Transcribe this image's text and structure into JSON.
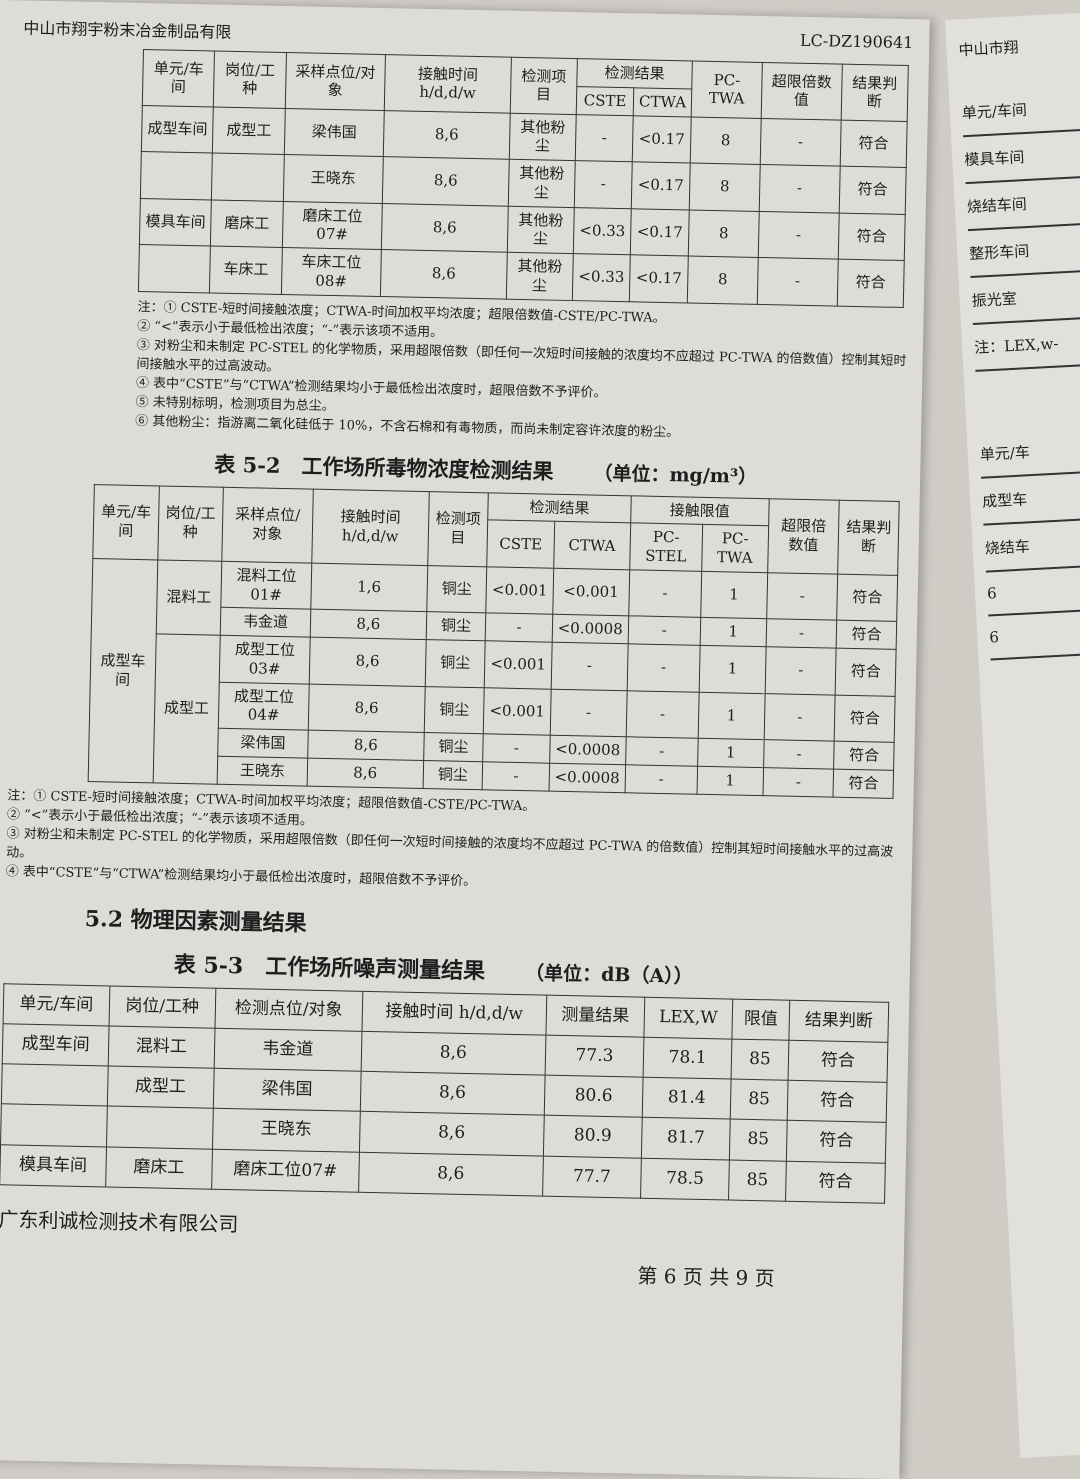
{
  "header": {
    "company": "中山市翔宇粉末冶金制品有限",
    "doc_no": "LC-DZ190641"
  },
  "table1": {
    "headers": {
      "unit": "单元/车间",
      "post": "岗位/工种",
      "point": "采样点位/对象",
      "time": "接触时间 h/d,d/w",
      "item": "检测项目",
      "result": "检测结果",
      "cste": "CSTE",
      "ctwa": "CTWA",
      "pctwa": "PC-TWA",
      "exceed": "超限倍数值",
      "judge": "结果判断"
    },
    "rows": [
      {
        "unit": "成型车间",
        "post": "成型工",
        "point": "梁伟国",
        "time": "8,6",
        "item": "其他粉尘",
        "cste": "-",
        "ctwa": "<0.17",
        "pctwa": "8",
        "exceed": "-",
        "judge": "符合"
      },
      {
        "unit": "",
        "post": "",
        "point": "王晓东",
        "time": "8,6",
        "item": "其他粉尘",
        "cste": "-",
        "ctwa": "<0.17",
        "pctwa": "8",
        "exceed": "-",
        "judge": "符合"
      },
      {
        "unit": "模具车间",
        "post": "磨床工",
        "point": "磨床工位07#",
        "time": "8,6",
        "item": "其他粉尘",
        "cste": "<0.33",
        "ctwa": "<0.17",
        "pctwa": "8",
        "exceed": "-",
        "judge": "符合"
      },
      {
        "unit": "",
        "post": "车床工",
        "point": "车床工位08#",
        "time": "8,6",
        "item": "其他粉尘",
        "cste": "<0.33",
        "ctwa": "<0.17",
        "pctwa": "8",
        "exceed": "-",
        "judge": "符合"
      }
    ],
    "notes": [
      "注：① CSTE-短时间接触浓度；CTWA-时间加权平均浓度；超限倍数值-CSTE/PC-TWA。",
      "② “<”表示小于最低检出浓度；“-”表示该项不适用。",
      "③ 对粉尘和未制定 PC-STEL 的化学物质，采用超限倍数（即任何一次短时间接触的浓度均不应超过 PC-TWA 的倍数值）控制其短时间接触水平的过高波动。",
      "④ 表中“CSTE”与“CTWA”检测结果均小于最低检出浓度时，超限倍数不予评价。",
      "⑤ 未特别标明，检测项目为总尘。",
      "⑥ 其他粉尘：指游离二氧化硅低于 10%，不含石棉和有毒物质，而尚未制定容许浓度的粉尘。"
    ]
  },
  "table2": {
    "caption": "表 5-2　工作场所毒物浓度检测结果",
    "unit": "（单位：mg/m³）",
    "headers": {
      "unit": "单元/车间",
      "post": "岗位/工种",
      "point": "采样点位/对象",
      "time": "接触时间 h/d,d/w",
      "item": "检测项目",
      "result": "检测结果",
      "cste": "CSTE",
      "ctwa": "CTWA",
      "limit": "接触限值",
      "pcstel": "PC-STEL",
      "pctwa": "PC-TWA",
      "exceed": "超限倍数值",
      "judge": "结果判断"
    },
    "workshop": "成型车间",
    "groups": [
      {
        "post": "混料工",
        "rows": [
          {
            "point": "混料工位01#",
            "time": "1,6",
            "item": "铜尘",
            "cste": "<0.001",
            "ctwa": "<0.001",
            "pcstel": "-",
            "pctwa": "1",
            "exceed": "-",
            "judge": "符合"
          },
          {
            "point": "韦金道",
            "time": "8,6",
            "item": "铜尘",
            "cste": "-",
            "ctwa": "<0.0008",
            "pcstel": "-",
            "pctwa": "1",
            "exceed": "-",
            "judge": "符合"
          }
        ]
      },
      {
        "post": "成型工",
        "rows": [
          {
            "point": "成型工位03#",
            "time": "8,6",
            "item": "铜尘",
            "cste": "<0.001",
            "ctwa": "-",
            "pcstel": "-",
            "pctwa": "1",
            "exceed": "-",
            "judge": "符合"
          },
          {
            "point": "成型工位04#",
            "time": "8,6",
            "item": "铜尘",
            "cste": "<0.001",
            "ctwa": "-",
            "pcstel": "-",
            "pctwa": "1",
            "exceed": "-",
            "judge": "符合"
          },
          {
            "point": "梁伟国",
            "time": "8,6",
            "item": "铜尘",
            "cste": "-",
            "ctwa": "<0.0008",
            "pcstel": "-",
            "pctwa": "1",
            "exceed": "-",
            "judge": "符合"
          },
          {
            "point": "王晓东",
            "time": "8,6",
            "item": "铜尘",
            "cste": "-",
            "ctwa": "<0.0008",
            "pcstel": "-",
            "pctwa": "1",
            "exceed": "-",
            "judge": "符合"
          }
        ]
      }
    ],
    "notes": [
      "注：① CSTE-短时间接触浓度；CTWA-时间加权平均浓度；超限倍数值-CSTE/PC-TWA。",
      "② “<”表示小于最低检出浓度；“-”表示该项不适用。",
      "③ 对粉尘和未制定 PC-STEL 的化学物质，采用超限倍数（即任何一次短时间接触的浓度均不应超过 PC-TWA 的倍数值）控制其短时间接触水平的过高波动。",
      "④ 表中“CSTE”与“CTWA”检测结果均小于最低检出浓度时，超限倍数不予评价。"
    ]
  },
  "section": "5.2 物理因素测量结果",
  "table3": {
    "caption": "表 5-3　工作场所噪声测量结果",
    "unit": "（单位：dB（A））",
    "headers": {
      "unit": "单元/车间",
      "post": "岗位/工种",
      "point": "检测点位/对象",
      "time": "接触时间 h/d,d/w",
      "result": "测量结果",
      "lex": "LEX,W",
      "limit": "限值",
      "judge": "结果判断"
    },
    "rows": [
      {
        "unit": "成型车间",
        "post": "混料工",
        "point": "韦金道",
        "time": "8,6",
        "result": "77.3",
        "lex": "78.1",
        "limit": "85",
        "judge": "符合"
      },
      {
        "unit": "",
        "post": "成型工",
        "point": "梁伟国",
        "time": "8,6",
        "result": "80.6",
        "lex": "81.4",
        "limit": "85",
        "judge": "符合"
      },
      {
        "unit": "",
        "post": "",
        "point": "王晓东",
        "time": "8,6",
        "result": "80.9",
        "lex": "81.7",
        "limit": "85",
        "judge": "符合"
      },
      {
        "unit": "模具车间",
        "post": "磨床工",
        "point": "磨床工位07#",
        "time": "8,6",
        "result": "77.7",
        "lex": "78.5",
        "limit": "85",
        "judge": "符合"
      }
    ]
  },
  "footer": {
    "company": "广东利诚检测技术有限公司",
    "page": "第 6 页 共 9 页"
  },
  "right_page": {
    "header": "中山市翔",
    "items": [
      "单元/车间",
      "模具车间",
      "烧结车间",
      "整形车间",
      "振光室",
      "注：LEX,w-"
    ],
    "items2": [
      "单元/车",
      "成型车",
      "烧结车",
      "6",
      "6"
    ]
  }
}
